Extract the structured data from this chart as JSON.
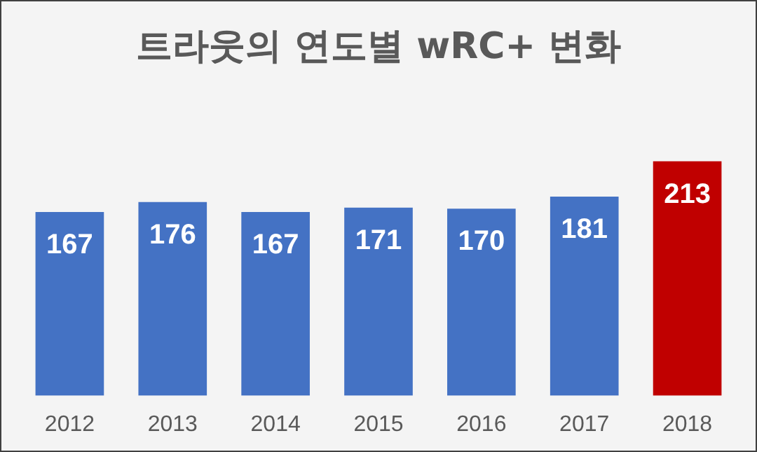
{
  "chart_data": {
    "type": "bar",
    "title": "트라웃의 연도별 wRC+ 변화",
    "categories": [
      "2012",
      "2013",
      "2014",
      "2015",
      "2016",
      "2017",
      "2018"
    ],
    "values": [
      167,
      176,
      167,
      171,
      170,
      181,
      213
    ],
    "colors": [
      "#4472c4",
      "#4472c4",
      "#4472c4",
      "#4472c4",
      "#4472c4",
      "#4472c4",
      "#c00000"
    ],
    "tick_labels": "x",
    "grid": false,
    "legend": false,
    "data_labels": true
  }
}
